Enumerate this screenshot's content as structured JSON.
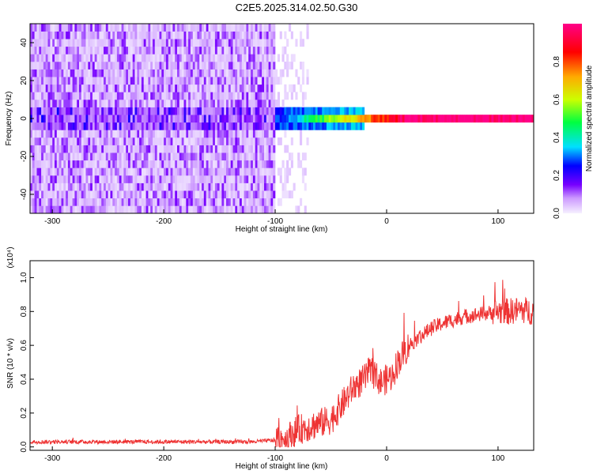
{
  "title": "C2E5.2025.314.02.50.G30",
  "chart_data": [
    {
      "type": "heatmap",
      "xlabel": "Height of straight line (km)",
      "ylabel": "Frequency (Hz)",
      "xlim": [
        -320,
        132
      ],
      "ylim": [
        -50,
        50
      ],
      "xticks": [
        -300,
        -200,
        -100,
        0,
        100
      ],
      "yticks": [
        -40,
        -20,
        0,
        20,
        40
      ],
      "grid": false,
      "colorbar": {
        "label": "Normalized spectral amplitude",
        "range": [
          0,
          1
        ],
        "ticks": [
          "0.0",
          "0.2",
          "0.4",
          "0.6",
          "0.8"
        ],
        "colormap": [
          "#f6f0ff",
          "#cc99ff",
          "#7700ff",
          "#0000ff",
          "#00e0ff",
          "#00ff40",
          "#ccff00",
          "#ffaa00",
          "#ff0000",
          "#ff0088"
        ]
      },
      "features": [
        {
          "description_region": "noise",
          "x_range": [
            -320,
            -100
          ],
          "y_range": [
            -50,
            50
          ],
          "amplitude": 0.15
        },
        {
          "description_region": "transition",
          "x_range": [
            -100,
            -70
          ],
          "y_range": [
            -50,
            50
          ],
          "amplitude": 0.05
        },
        {
          "description_region": "signal_band",
          "x_range": [
            -100,
            132
          ],
          "center_hz": 0,
          "peak_amplitude": 0.95
        }
      ]
    },
    {
      "type": "line",
      "xlabel": "Height of straight line (km)",
      "ylabel": "SNR (10 * v/v)",
      "y_multiplier": "(x10⁴)",
      "xlim": [
        -320,
        132
      ],
      "ylim": [
        -0.02,
        1.1
      ],
      "xticks": [
        -300,
        -200,
        -100,
        0,
        100
      ],
      "yticks": [
        "0.0",
        "0.2",
        "0.4",
        "0.6",
        "0.8",
        "1.0"
      ],
      "color": "#ee3333",
      "series": [
        {
          "x": [
            -320,
            -250,
            -200,
            -150,
            -120,
            -100,
            -90,
            -80,
            -70,
            -60,
            -50,
            -40,
            -30,
            -20,
            -15,
            -10,
            -5,
            0,
            5,
            10,
            15,
            20,
            30,
            40,
            50,
            60,
            70,
            80,
            90,
            100,
            110,
            120,
            130
          ],
          "y": [
            0.03,
            0.03,
            0.03,
            0.03,
            0.03,
            0.04,
            0.05,
            0.1,
            0.12,
            0.14,
            0.16,
            0.25,
            0.35,
            0.4,
            0.45,
            0.42,
            0.38,
            0.4,
            0.42,
            0.5,
            0.55,
            0.6,
            0.65,
            0.7,
            0.73,
            0.75,
            0.77,
            0.78,
            0.79,
            0.8,
            0.8,
            0.81,
            0.8
          ]
        }
      ]
    }
  ]
}
